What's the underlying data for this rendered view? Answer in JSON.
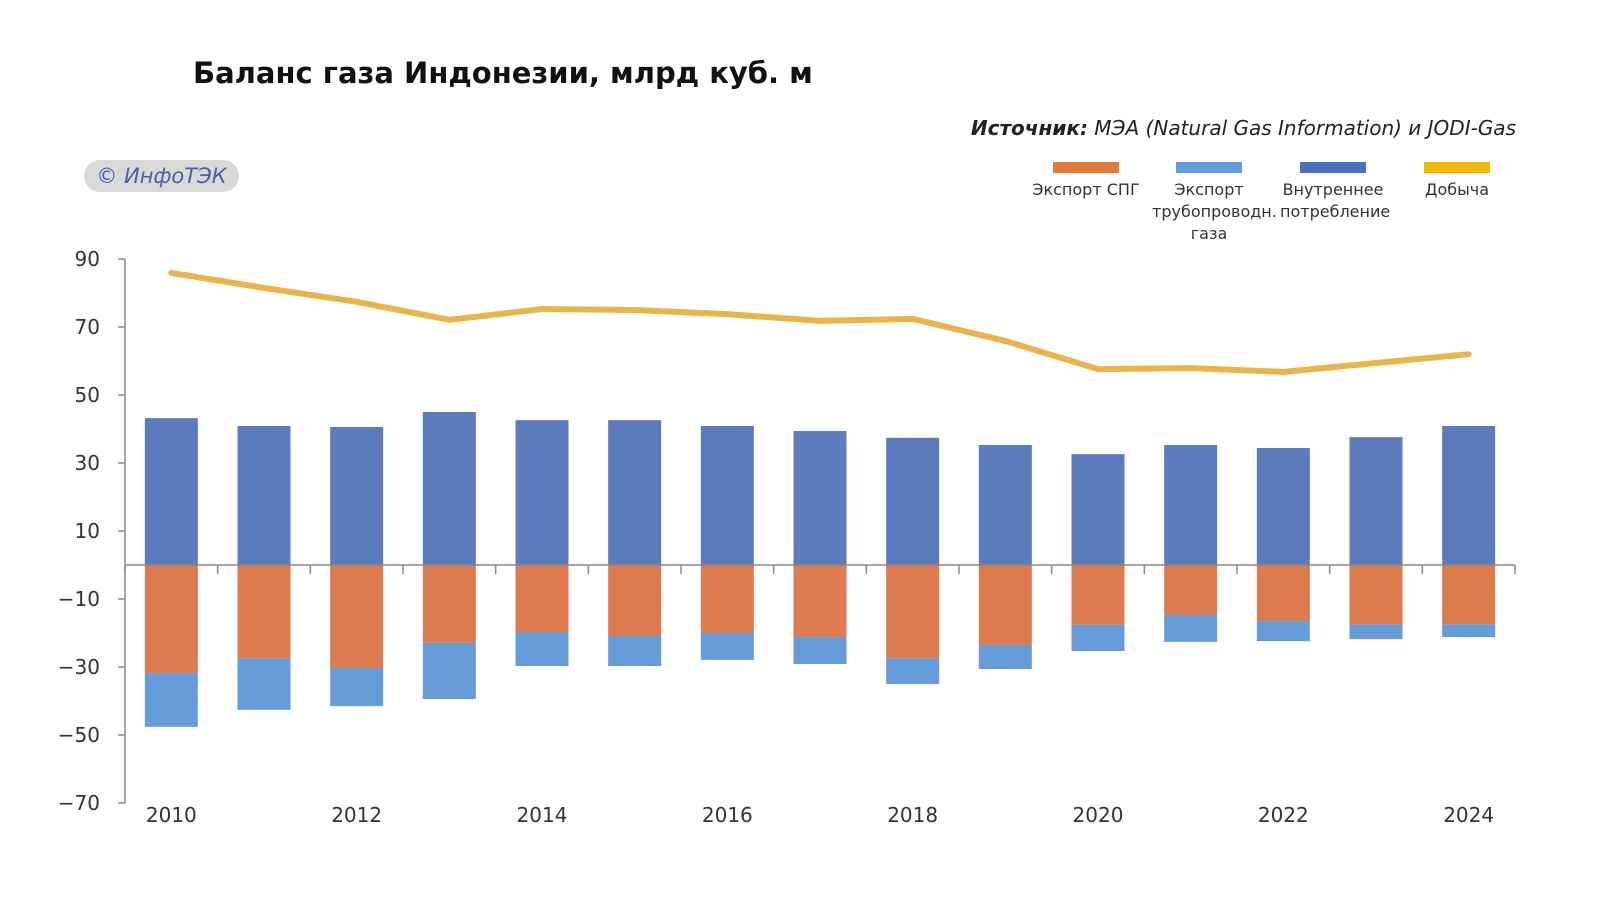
{
  "title": "Баланс газа Индонезии, млрд куб. м",
  "source_label": "Источник:",
  "source_text": "МЭА (Natural Gas Information) и JODI-Gas",
  "logo": "© ИнфоТЭК",
  "chart_data": {
    "type": "bar",
    "title": "Баланс газа Индонезии, млрд куб. м",
    "xlabel": "",
    "ylabel": "",
    "ylim": [
      -70,
      90
    ],
    "yticks": [
      90,
      70,
      50,
      30,
      10,
      -10,
      -30,
      -50,
      -70
    ],
    "ytick_labels": [
      "90",
      "70",
      "50",
      "30",
      "10",
      "−10",
      "−30",
      "−50",
      "−70"
    ],
    "categories": [
      "2010",
      "2011",
      "2012",
      "2013",
      "2014",
      "2015",
      "2016",
      "2017",
      "2018",
      "2019",
      "2020",
      "2021",
      "2022",
      "2023",
      "2024"
    ],
    "xtick_labels": [
      "2010",
      "2012",
      "2014",
      "2016",
      "2018",
      "2020",
      "2022",
      "2024"
    ],
    "legend_placement": "top-right",
    "series": [
      {
        "name": "Экспорт СПГ",
        "type": "stacked-bar-negative",
        "color": "#dd7b4f",
        "values": [
          -31.8,
          -27.4,
          -30.3,
          -22.9,
          -19.7,
          -20.9,
          -20.0,
          -21.2,
          -27.4,
          -23.5,
          -17.6,
          -14.7,
          -16.5,
          -17.4,
          -17.4
        ]
      },
      {
        "name": "Экспорт трубопроводн. газа",
        "type": "stacked-bar-negative",
        "color": "#649bd8",
        "values": [
          -15.8,
          -15.2,
          -11.2,
          -16.5,
          -10.0,
          -8.8,
          -7.9,
          -7.9,
          -7.6,
          -7.1,
          -7.7,
          -7.9,
          -5.9,
          -4.4,
          -3.8
        ]
      },
      {
        "name": "Внутреннее потребление",
        "type": "bar",
        "color": "#5b7bbd",
        "values": [
          43.2,
          40.9,
          40.6,
          45.0,
          42.6,
          42.6,
          40.9,
          39.4,
          37.4,
          35.3,
          32.6,
          35.3,
          34.4,
          37.6,
          40.9
        ]
      },
      {
        "name": "Добыча",
        "type": "line",
        "color": "#ebb44a",
        "values": [
          85.9,
          81.5,
          77.4,
          72.1,
          75.3,
          75.0,
          73.8,
          71.8,
          72.4,
          65.9,
          57.6,
          57.9,
          56.8,
          59.4,
          62.0
        ]
      }
    ]
  },
  "legend": [
    {
      "label": "Экспорт СПГ",
      "color": "#e07a3c"
    },
    {
      "label": "Экспорт трубопроводн. газа",
      "color": "#5e9fdd"
    },
    {
      "label": "Внутреннее потребление",
      "color": "#4a6fc0"
    },
    {
      "label": "Добыча",
      "color": "#f5b800"
    }
  ]
}
